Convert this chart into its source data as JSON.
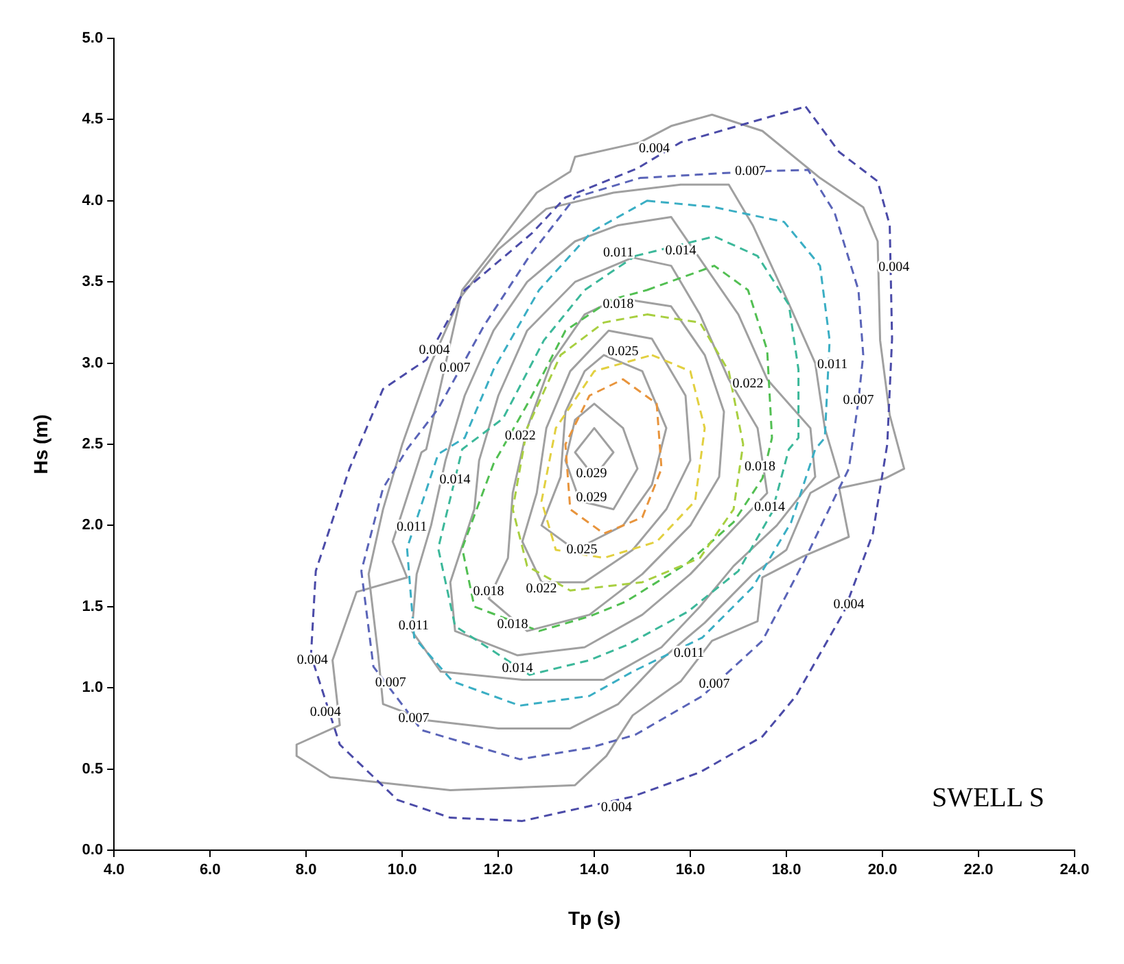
{
  "chart_data": {
    "type": "line",
    "xlabel": "Tp (s)",
    "ylabel": "Hs (m)",
    "xlim": [
      4,
      24
    ],
    "ylim": [
      0,
      5
    ],
    "xticks": [
      {
        "value": 4,
        "label": "4.0"
      },
      {
        "value": 6,
        "label": "6.0"
      },
      {
        "value": 8,
        "label": "8.0"
      },
      {
        "value": 10,
        "label": "10.0"
      },
      {
        "value": 12,
        "label": "12.0"
      },
      {
        "value": 14,
        "label": "14.0"
      },
      {
        "value": 16,
        "label": "16.0"
      },
      {
        "value": 18,
        "label": "18.0"
      },
      {
        "value": 20,
        "label": "20.0"
      },
      {
        "value": 22,
        "label": "22.0"
      },
      {
        "value": 24,
        "label": "24.0"
      }
    ],
    "yticks": [
      {
        "value": 0,
        "label": "0.0"
      },
      {
        "value": 0.5,
        "label": "0.5"
      },
      {
        "value": 1,
        "label": "1.0"
      },
      {
        "value": 1.5,
        "label": "1.5"
      },
      {
        "value": 2,
        "label": "2.0"
      },
      {
        "value": 2.5,
        "label": "2.5"
      },
      {
        "value": 3,
        "label": "3.0"
      },
      {
        "value": 3.5,
        "label": "3.5"
      },
      {
        "value": 4,
        "label": "4.0"
      },
      {
        "value": 4.5,
        "label": "4.5"
      },
      {
        "value": 5,
        "label": "5.0"
      }
    ],
    "annotations": [
      "0.004",
      "0.007",
      "0.011",
      "0.014",
      "0.018",
      "0.004",
      "0.025",
      "0.004",
      "0.007",
      "0.011",
      "0.022",
      "0.007",
      "0.022",
      "0.014",
      "0.029",
      "0.018",
      "0.029",
      "0.014",
      "0.011",
      "0.025",
      "0.018",
      "0.022",
      "0.004",
      "0.011",
      "0.018",
      "0.011",
      "0.004",
      "0.014",
      "0.007",
      "0.007",
      "0.004",
      "0.007",
      "0.004",
      "SWELL S"
    ]
  }
}
